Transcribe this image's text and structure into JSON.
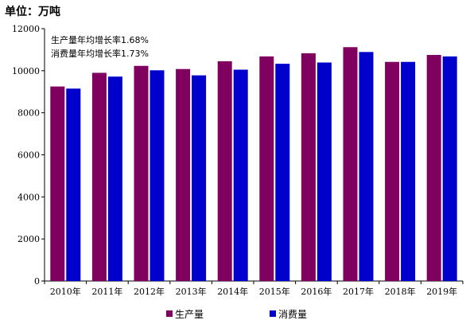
{
  "unit_label": "单位：万吨",
  "annotations": [
    "生产量年均增长率1.68%",
    "消费量年均增长率1.73%"
  ],
  "chart_data": {
    "type": "bar",
    "title": "",
    "xlabel": "",
    "ylabel": "",
    "ylim": [
      0,
      12000
    ],
    "yticks": [
      0,
      2000,
      4000,
      6000,
      8000,
      10000,
      12000
    ],
    "categories": [
      "2010年",
      "2011年",
      "2012年",
      "2013年",
      "2014年",
      "2015年",
      "2016年",
      "2017年",
      "2018年",
      "2019年"
    ],
    "series": [
      {
        "name": "生产量",
        "color": "#800060",
        "values": [
          9250,
          9900,
          10230,
          10080,
          10450,
          10680,
          10830,
          11120,
          10420,
          10750
        ]
      },
      {
        "name": "消费量",
        "color": "#0000cc",
        "values": [
          9150,
          9720,
          10020,
          9780,
          10050,
          10330,
          10390,
          10890,
          10420,
          10680
        ]
      }
    ],
    "grid": false,
    "legend_position": "bottom"
  }
}
